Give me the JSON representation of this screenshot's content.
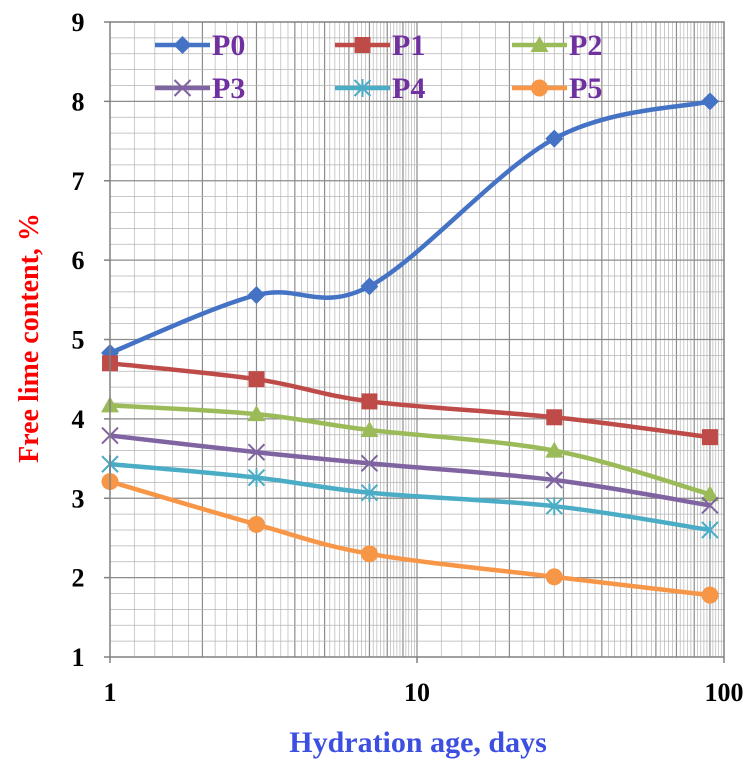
{
  "chart_data": {
    "type": "line",
    "x_scale": "log",
    "xlim": [
      1,
      100
    ],
    "ylim": [
      1,
      9
    ],
    "xlabel": "Hydration age, days",
    "ylabel": "Free lime content, %",
    "x_ticks": [
      "1",
      "10",
      "100"
    ],
    "y_ticks": [
      "1",
      "2",
      "3",
      "4",
      "5",
      "6",
      "7",
      "8",
      "9"
    ],
    "grid": true,
    "legend_position": "top",
    "label_colors": {
      "xlabel": "#3d4fe0",
      "ylabel": "#ff0000",
      "legend": "#7030a0"
    },
    "x": [
      1,
      3,
      7,
      28,
      90
    ],
    "series": [
      {
        "name": "P0",
        "values": [
          4.83,
          5.56,
          5.67,
          7.53,
          8.0
        ],
        "color": "#4472c4",
        "marker": "diamond"
      },
      {
        "name": "P1",
        "values": [
          4.7,
          4.5,
          4.22,
          4.02,
          3.77
        ],
        "color": "#be4b48",
        "marker": "square"
      },
      {
        "name": "P2",
        "values": [
          4.17,
          4.06,
          3.86,
          3.6,
          3.05
        ],
        "color": "#9bbb59",
        "marker": "triangle"
      },
      {
        "name": "P3",
        "values": [
          3.79,
          3.58,
          3.44,
          3.23,
          2.91
        ],
        "color": "#8064a2",
        "marker": "x"
      },
      {
        "name": "P4",
        "values": [
          3.43,
          3.26,
          3.07,
          2.9,
          2.6
        ],
        "color": "#4bacc6",
        "marker": "star"
      },
      {
        "name": "P5",
        "values": [
          3.21,
          2.67,
          2.3,
          2.01,
          1.78
        ],
        "color": "#f79646",
        "marker": "circle"
      }
    ]
  }
}
